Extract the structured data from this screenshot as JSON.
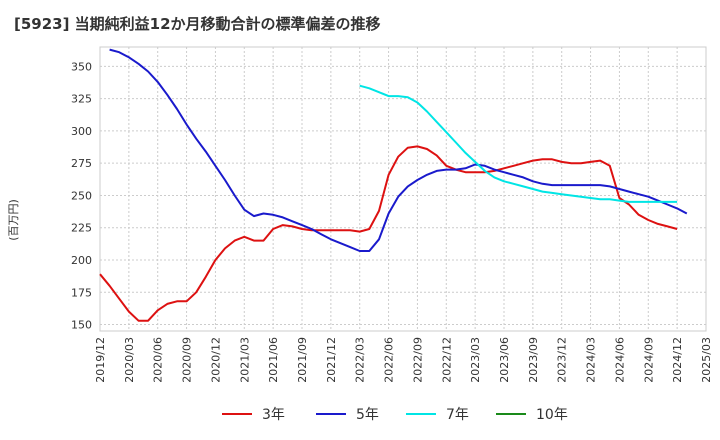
{
  "chart_data": {
    "type": "line",
    "title": "[5923]  当期純利益12か月移動合計の標準偏差の推移",
    "ylabel": "(百万円)",
    "xlabel": "",
    "ylim": [
      145,
      365
    ],
    "yticks": [
      150,
      175,
      200,
      225,
      250,
      275,
      300,
      325,
      350
    ],
    "xticks": [
      "2019/12",
      "2020/03",
      "2020/06",
      "2020/09",
      "2020/12",
      "2021/03",
      "2021/06",
      "2021/09",
      "2021/12",
      "2022/03",
      "2022/06",
      "2022/09",
      "2022/12",
      "2023/03",
      "2023/06",
      "2023/09",
      "2023/12",
      "2024/03",
      "2024/06",
      "2024/09",
      "2024/12",
      "2025/03"
    ],
    "x_start": "2019/12",
    "legend_position": "bottom",
    "series": [
      {
        "name": "3年",
        "color": "#dd1111",
        "start_month_index": 0,
        "values": [
          189,
          180,
          170,
          160,
          153,
          153,
          161,
          166,
          168,
          168,
          175,
          187,
          200,
          209,
          215,
          218,
          215,
          215,
          224,
          227,
          226,
          224,
          223,
          223,
          223,
          223,
          223,
          222,
          224,
          238,
          266,
          280,
          287,
          288,
          286,
          281,
          273,
          270,
          268,
          268,
          268,
          269,
          271,
          273,
          275,
          277,
          278,
          278,
          276,
          275,
          275,
          276,
          277,
          273,
          248,
          243,
          235,
          231,
          228,
          226,
          224
        ]
      },
      {
        "name": "5年",
        "color": "#1a1acc",
        "start_month_index": 1,
        "values": [
          363,
          361,
          357,
          352,
          346,
          338,
          328,
          317,
          305,
          294,
          284,
          273,
          262,
          250,
          239,
          234,
          236,
          235,
          233,
          230,
          227,
          224,
          220,
          216,
          213,
          210,
          207,
          207,
          216,
          236,
          249,
          257,
          262,
          266,
          269,
          270,
          270,
          271,
          274,
          273,
          270,
          268,
          266,
          264,
          261,
          259,
          258,
          258,
          258,
          258,
          258,
          258,
          257,
          255,
          253,
          251,
          249,
          246,
          243,
          240,
          236
        ]
      },
      {
        "name": "7年",
        "color": "#00e5e5",
        "start_month_index": 27,
        "values": [
          335,
          333,
          330,
          327,
          327,
          326,
          322,
          315,
          307,
          299,
          291,
          283,
          276,
          269,
          264,
          261,
          259,
          257,
          255,
          253,
          252,
          251,
          250,
          249,
          248,
          247,
          247,
          246,
          245,
          245,
          245,
          245,
          245,
          245
        ]
      },
      {
        "name": "10年",
        "color": "#1a8a1a",
        "start_month_index": 0,
        "values": []
      }
    ]
  }
}
